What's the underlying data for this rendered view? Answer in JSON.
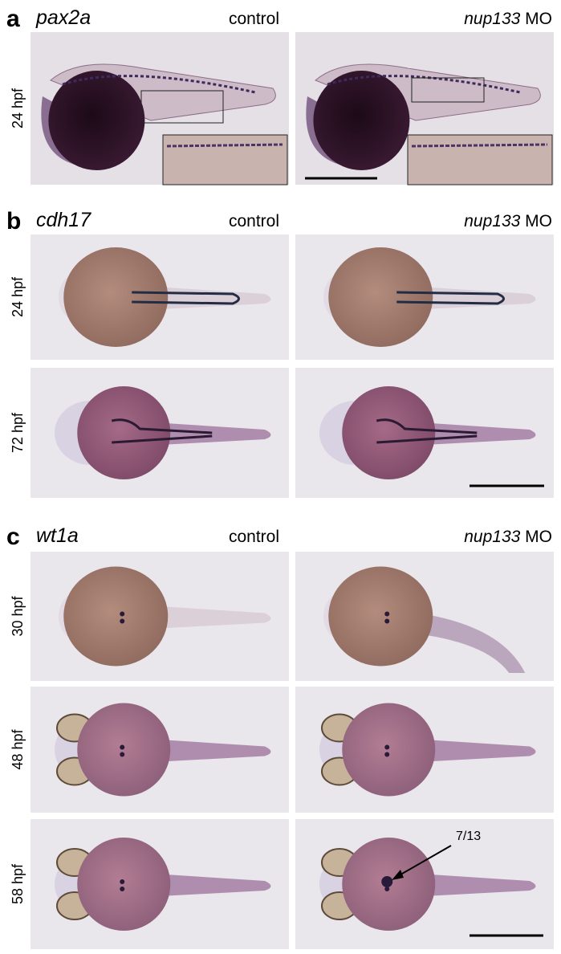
{
  "panels": [
    {
      "letter": "a",
      "gene": "pax2a",
      "control": "control",
      "mo_gene": "nup133",
      "mo_label": "MO",
      "rows": [
        "24 hpf"
      ]
    },
    {
      "letter": "b",
      "gene": "cdh17",
      "control": "control",
      "mo_gene": "nup133",
      "mo_label": "MO",
      "rows": [
        "24 hpf",
        "72 hpf"
      ]
    },
    {
      "letter": "c",
      "gene": "wt1a",
      "control": "control",
      "mo_gene": "nup133",
      "mo_label": "MO",
      "rows": [
        "30 hpf",
        "48 hpf",
        "58 hpf"
      ]
    }
  ],
  "annotation": "7/13"
}
